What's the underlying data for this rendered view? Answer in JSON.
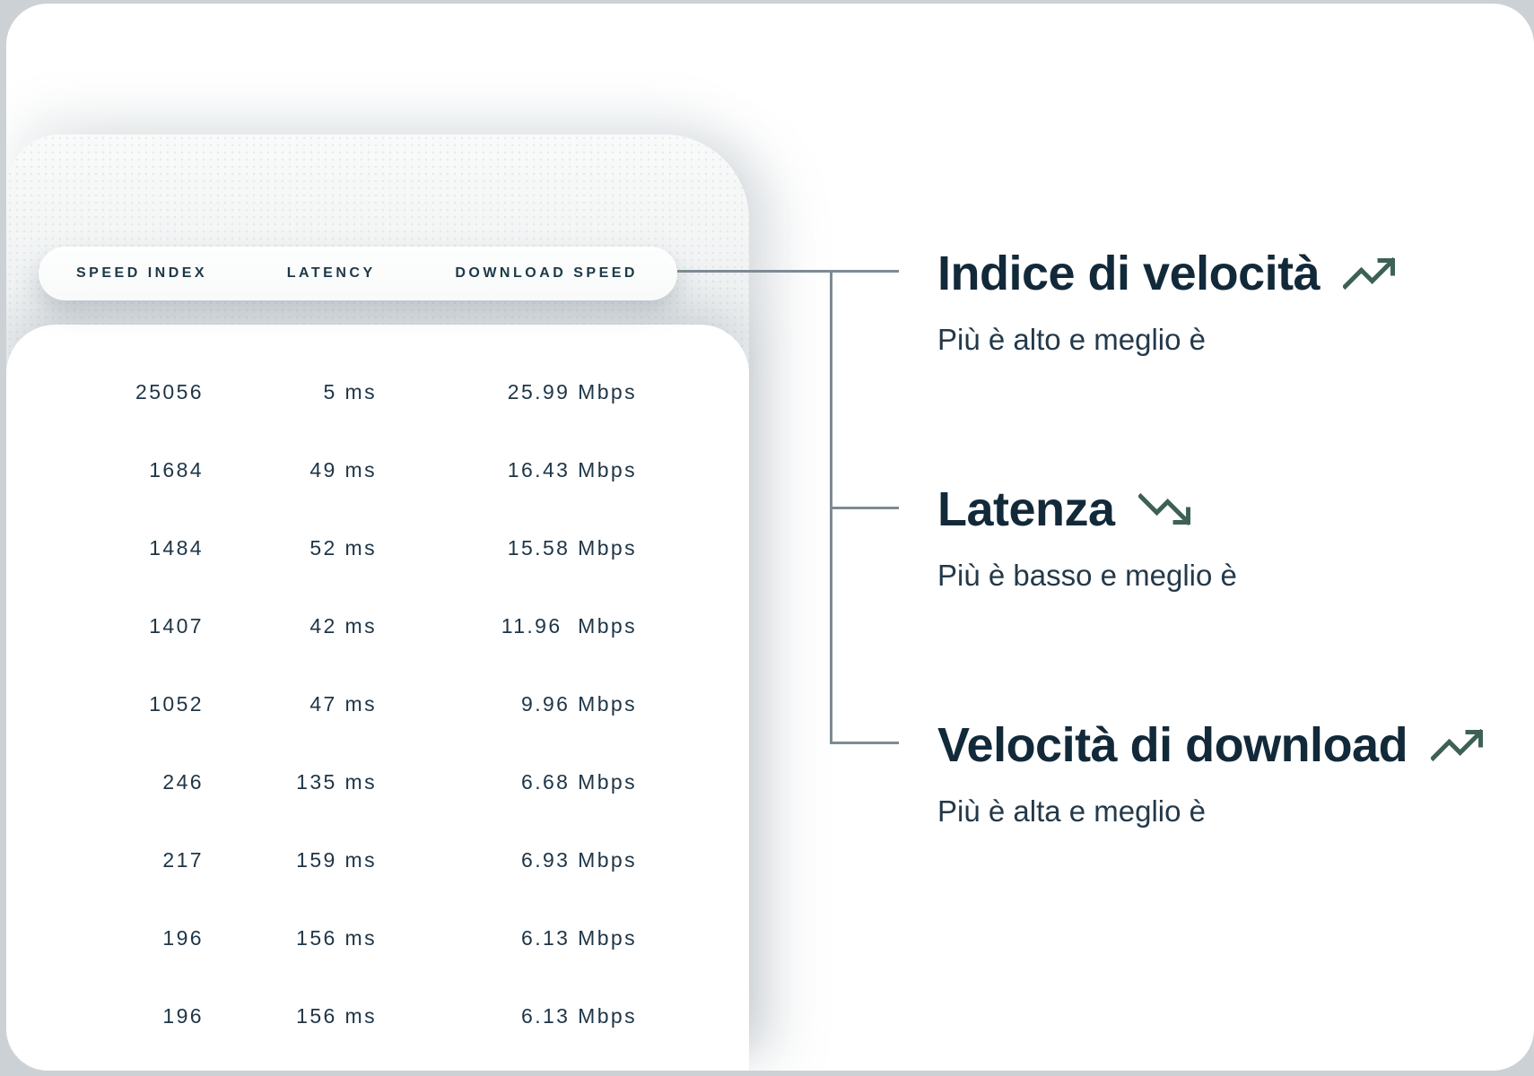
{
  "table": {
    "headers": [
      "SPEED INDEX",
      "LATENCY",
      "DOWNLOAD SPEED"
    ],
    "rows": [
      {
        "speed_index": "25056",
        "latency": "5 ms",
        "download": "25.99 Mbps"
      },
      {
        "speed_index": "1684",
        "latency": "49 ms",
        "download": "16.43 Mbps"
      },
      {
        "speed_index": "1484",
        "latency": "52 ms",
        "download": "15.58 Mbps"
      },
      {
        "speed_index": "1407",
        "latency": "42 ms",
        "download": "11.96  Mbps"
      },
      {
        "speed_index": "1052",
        "latency": "47 ms",
        "download": "9.96 Mbps"
      },
      {
        "speed_index": "246",
        "latency": "135 ms",
        "download": "6.68 Mbps"
      },
      {
        "speed_index": "217",
        "latency": "159 ms",
        "download": "6.93 Mbps"
      },
      {
        "speed_index": "196",
        "latency": "156 ms",
        "download": "6.13 Mbps"
      },
      {
        "speed_index": "196",
        "latency": "156 ms",
        "download": "6.13 Mbps"
      }
    ]
  },
  "notes": [
    {
      "title": "Indice di velocità",
      "subtitle": "Più è alto e meglio è",
      "icon": "trend-up-icon"
    },
    {
      "title": "Latenza",
      "subtitle": "Più è basso e meglio è",
      "icon": "trend-down-icon"
    },
    {
      "title": "Velocità di download",
      "subtitle": "Più è alta e meglio è",
      "icon": "trend-up-icon"
    }
  ],
  "colors": {
    "heading": "#12293a",
    "subtitle": "#24394a",
    "icon_stroke": "#3e6156",
    "connector": "#7c8b94",
    "pill_text": "#1c3947",
    "table_text": "#1e3546",
    "frame_strip": "#ccd1d5"
  }
}
